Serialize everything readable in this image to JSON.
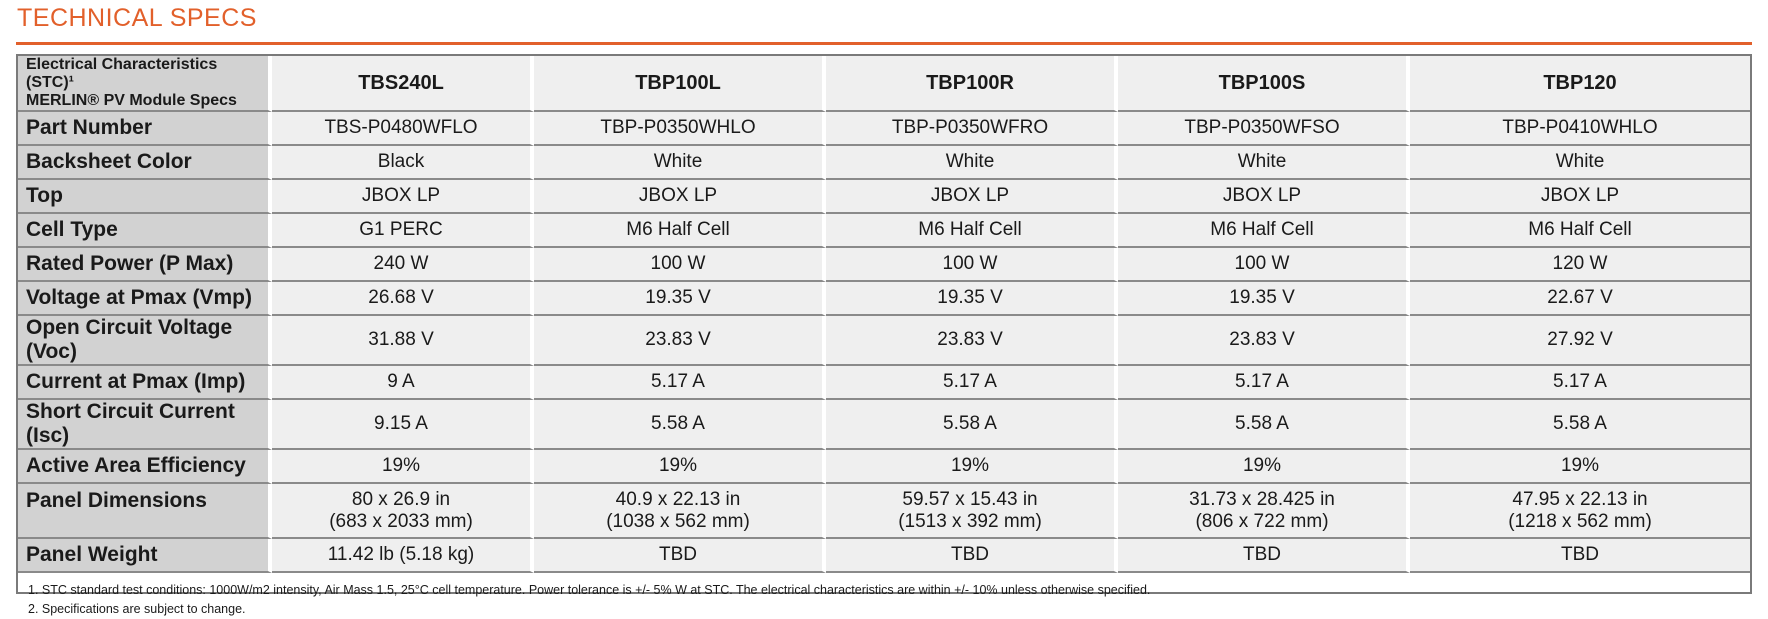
{
  "page": {
    "title": "TECHNICAL SPECS",
    "accent_color": "#e2602b"
  },
  "table": {
    "corner_label_line1": "Electrical Characteristics (STC)¹",
    "corner_label_line2": "MERLIN® PV Module Specs",
    "columns": [
      "TBS240L",
      "TBP100L",
      "TBP100R",
      "TBP100S",
      "TBP120"
    ],
    "rows": [
      {
        "label": "Part Number",
        "values": [
          "TBS-P0480WFLO",
          "TBP-P0350WHLO",
          "TBP-P0350WFRO",
          "TBP-P0350WFSO",
          "TBP-P0410WHLO"
        ]
      },
      {
        "label": "Backsheet Color",
        "values": [
          "Black",
          "White",
          "White",
          "White",
          "White"
        ]
      },
      {
        "label": "Top",
        "values": [
          "JBOX LP",
          "JBOX LP",
          "JBOX LP",
          "JBOX LP",
          "JBOX LP"
        ]
      },
      {
        "label": "Cell Type",
        "values": [
          "G1 PERC",
          "M6 Half Cell",
          "M6 Half Cell",
          "M6 Half Cell",
          "M6 Half Cell"
        ]
      },
      {
        "label": "Rated Power (P Max)",
        "values": [
          "240 W",
          "100 W",
          "100 W",
          "100 W",
          "120 W"
        ]
      },
      {
        "label": "Voltage at Pmax (Vmp)",
        "values": [
          "26.68 V",
          "19.35 V",
          "19.35 V",
          "19.35 V",
          "22.67 V"
        ]
      },
      {
        "label": "Open Circuit Voltage (Voc)",
        "values": [
          "31.88 V",
          "23.83 V",
          "23.83 V",
          "23.83 V",
          "27.92 V"
        ]
      },
      {
        "label": "Current at Pmax (Imp)",
        "values": [
          "9 A",
          "5.17 A",
          "5.17 A",
          "5.17 A",
          "5.17 A"
        ]
      },
      {
        "label": "Short Circuit Current (Isc)",
        "values": [
          "9.15 A",
          "5.58 A",
          "5.58 A",
          "5.58 A",
          "5.58 A"
        ]
      },
      {
        "label": "Active Area Efficiency",
        "values": [
          "19%",
          "19%",
          "19%",
          "19%",
          "19%"
        ]
      },
      {
        "label": "Panel Dimensions",
        "values": [
          {
            "line1": "80 x 26.9 in",
            "line2": "(683 x 2033 mm)"
          },
          {
            "line1": "40.9 x 22.13 in",
            "line2": "(1038 x 562 mm)"
          },
          {
            "line1": "59.57 x 15.43 in",
            "line2": "(1513 x 392 mm)"
          },
          {
            "line1": "31.73 x 28.425 in",
            "line2": "(806 x 722 mm)"
          },
          {
            "line1": "47.95 x 22.13 in",
            "line2": "(1218 x 562 mm)"
          }
        ]
      },
      {
        "label": "Panel Weight",
        "values": [
          "11.42 lb (5.18 kg)",
          "TBD",
          "TBD",
          "TBD",
          "TBD"
        ]
      }
    ]
  },
  "notes": [
    "1.  STC standard test conditions: 1000W/m2 intensity, Air Mass 1.5, 25°C cell temperature. Power tolerance is +/- 5% W at STC. The electrical characteristics are within +/- 10% unless otherwise  specified.",
    "2.  Specifications are subject to change."
  ]
}
